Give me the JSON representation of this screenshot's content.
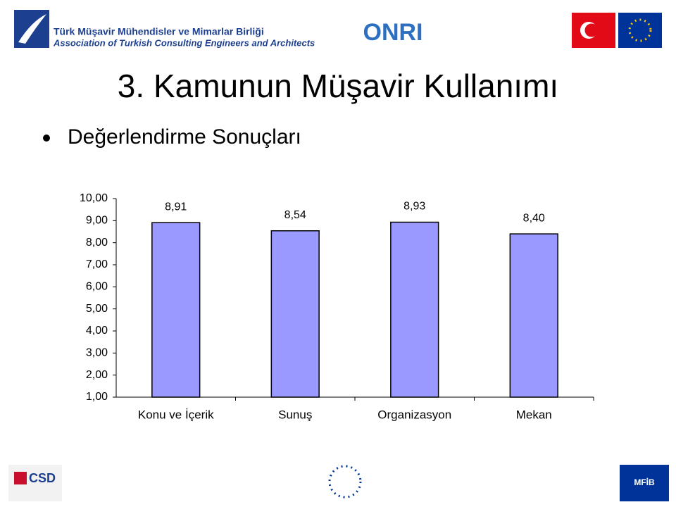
{
  "header": {
    "org_tr": "Türk Müşavir Mühendisler ve Mimarlar Birliği",
    "org_en": "Association of Turkish Consulting Engineers and Architects",
    "center_logo": "ONRI"
  },
  "slide": {
    "title": "3. Kamunun Müşavir Kullanımı",
    "bullet": "Değerlendirme Sonuçları"
  },
  "footer": {
    "left_logo": "CSD",
    "right_logo": "MFİB"
  },
  "chart_data": {
    "type": "bar",
    "categories": [
      "Konu ve İçerik",
      "Sunuş",
      "Organizasyon",
      "Mekan"
    ],
    "values": [
      8.91,
      8.54,
      8.93,
      8.4
    ],
    "value_labels": [
      "8,91",
      "8,54",
      "8,93",
      "8,40"
    ],
    "color": "#9999ff",
    "ylim": [
      1,
      10
    ],
    "yticks": [
      {
        "value": 1,
        "label": "1,00"
      },
      {
        "value": 2,
        "label": "2,00"
      },
      {
        "value": 3,
        "label": "3,00"
      },
      {
        "value": 4,
        "label": "4,00"
      },
      {
        "value": 5,
        "label": "5,00"
      },
      {
        "value": 6,
        "label": "6,00"
      },
      {
        "value": 7,
        "label": "7,00"
      },
      {
        "value": 8,
        "label": "8,00"
      },
      {
        "value": 9,
        "label": "9,00"
      },
      {
        "value": 10,
        "label": "10,00"
      }
    ],
    "grid": false
  }
}
